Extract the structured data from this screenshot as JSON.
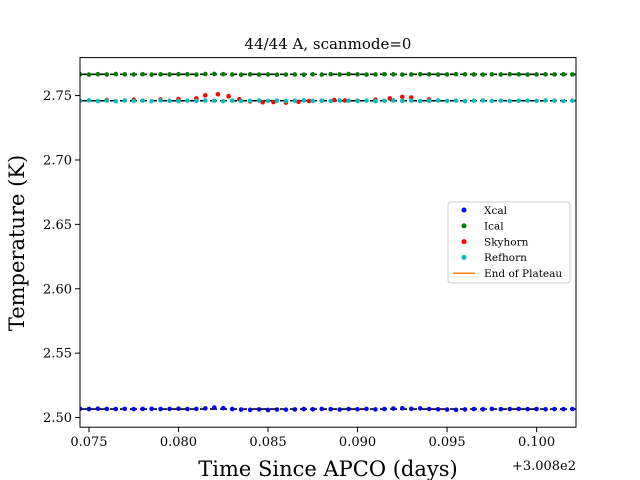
{
  "chart_data": {
    "type": "scatter",
    "title": "44/44 A, scanmode=0",
    "xlabel": "Time Since APCO (days)",
    "ylabel": "Temperature (K)",
    "x_offset_label": "+3.008e2",
    "xlim": [
      0.0745,
      0.1022
    ],
    "ylim": [
      2.4925,
      2.7795
    ],
    "x_ticks": [
      0.075,
      0.08,
      0.085,
      0.09,
      0.095,
      0.1
    ],
    "x_tick_labels": [
      "0.075",
      "0.080",
      "0.085",
      "0.090",
      "0.095",
      "0.100"
    ],
    "y_ticks": [
      2.5,
      2.55,
      2.6,
      2.65,
      2.7,
      2.75
    ],
    "y_tick_labels": [
      "2.50",
      "2.55",
      "2.60",
      "2.65",
      "2.70",
      "2.75"
    ],
    "grid": false,
    "legend_position": "center-right",
    "series": [
      {
        "name": "Xcal",
        "color": "#0000ff",
        "marker": "circle",
        "x": [
          0.0745,
          0.075,
          0.0755,
          0.076,
          0.0765,
          0.077,
          0.0775,
          0.078,
          0.0785,
          0.079,
          0.0795,
          0.08,
          0.0805,
          0.081,
          0.0815,
          0.082,
          0.0825,
          0.083,
          0.0835,
          0.084,
          0.0845,
          0.085,
          0.0855,
          0.086,
          0.0865,
          0.087,
          0.0875,
          0.088,
          0.0885,
          0.089,
          0.0895,
          0.09,
          0.0905,
          0.091,
          0.0915,
          0.092,
          0.0925,
          0.093,
          0.0935,
          0.094,
          0.0945,
          0.095,
          0.0955,
          0.096,
          0.0965,
          0.097,
          0.0975,
          0.098,
          0.0985,
          0.099,
          0.0995,
          0.1,
          0.1005,
          0.101,
          0.1015,
          0.102
        ],
        "y": [
          2.5068,
          2.5066,
          2.5069,
          2.5067,
          2.5066,
          2.5068,
          2.5065,
          2.5067,
          2.5068,
          2.5066,
          2.5067,
          2.5069,
          2.5066,
          2.5067,
          2.5071,
          2.5078,
          2.5073,
          2.5066,
          2.5062,
          2.506,
          2.5063,
          2.5059,
          2.5062,
          2.5061,
          2.5063,
          2.5066,
          2.5064,
          2.5067,
          2.5065,
          2.5062,
          2.5066,
          2.5064,
          2.5067,
          2.5063,
          2.5066,
          2.507,
          2.5072,
          2.5068,
          2.5071,
          2.5066,
          2.5064,
          2.5062,
          2.506,
          2.5063,
          2.5066,
          2.5064,
          2.5067,
          2.5065,
          2.5066,
          2.5067,
          2.5065,
          2.5066,
          2.5064,
          2.5066,
          2.5065,
          2.5066
        ]
      },
      {
        "name": "Ical",
        "color": "#008000",
        "marker": "circle",
        "x": [
          0.0745,
          0.075,
          0.0755,
          0.076,
          0.0765,
          0.077,
          0.0775,
          0.078,
          0.0785,
          0.079,
          0.0795,
          0.08,
          0.0805,
          0.081,
          0.0815,
          0.082,
          0.0825,
          0.083,
          0.0835,
          0.084,
          0.0845,
          0.085,
          0.0855,
          0.086,
          0.0865,
          0.087,
          0.0875,
          0.088,
          0.0885,
          0.089,
          0.0895,
          0.09,
          0.0905,
          0.091,
          0.0915,
          0.092,
          0.0925,
          0.093,
          0.0935,
          0.094,
          0.0945,
          0.095,
          0.0955,
          0.096,
          0.0965,
          0.097,
          0.0975,
          0.098,
          0.0985,
          0.099,
          0.0995,
          0.1,
          0.1005,
          0.101,
          0.1015,
          0.102
        ],
        "y": [
          2.7665,
          2.7663,
          2.7666,
          2.7664,
          2.7667,
          2.7665,
          2.7664,
          2.7666,
          2.7663,
          2.7665,
          2.7664,
          2.7666,
          2.7665,
          2.7663,
          2.7667,
          2.7668,
          2.7666,
          2.7664,
          2.7662,
          2.7665,
          2.7663,
          2.7664,
          2.7662,
          2.7663,
          2.7664,
          2.7662,
          2.7665,
          2.7663,
          2.7666,
          2.7664,
          2.7667,
          2.7665,
          2.7663,
          2.7664,
          2.7666,
          2.7665,
          2.7663,
          2.7664,
          2.7666,
          2.7665,
          2.7663,
          2.7664,
          2.7666,
          2.7665,
          2.7664,
          2.7663,
          2.7665,
          2.7664,
          2.7666,
          2.7665,
          2.7663,
          2.7664,
          2.7665,
          2.7664,
          2.7665,
          2.7664
        ]
      },
      {
        "name": "Skyhorn",
        "color": "#ff0000",
        "marker": "circle",
        "x": [
          0.076,
          0.0775,
          0.079,
          0.08,
          0.081,
          0.0815,
          0.0822,
          0.0828,
          0.0834,
          0.084,
          0.0847,
          0.0853,
          0.086,
          0.0867,
          0.0873,
          0.088,
          0.0887,
          0.0893,
          0.09,
          0.091,
          0.0918,
          0.0925,
          0.093,
          0.094
        ],
        "y": [
          2.7465,
          2.7468,
          2.747,
          2.7473,
          2.7478,
          2.7502,
          2.751,
          2.7495,
          2.7472,
          2.7455,
          2.7448,
          2.745,
          2.7445,
          2.7452,
          2.7458,
          2.746,
          2.7465,
          2.7462,
          2.746,
          2.7468,
          2.7478,
          2.749,
          2.7485,
          2.747
        ]
      },
      {
        "name": "Refhorn",
        "color": "#00bfbf",
        "marker": "circle",
        "x": [
          0.0745,
          0.075,
          0.0755,
          0.076,
          0.0765,
          0.077,
          0.0775,
          0.078,
          0.0785,
          0.079,
          0.0795,
          0.08,
          0.0805,
          0.081,
          0.0815,
          0.082,
          0.0825,
          0.083,
          0.0835,
          0.084,
          0.0845,
          0.085,
          0.0855,
          0.086,
          0.0865,
          0.087,
          0.0875,
          0.088,
          0.0885,
          0.089,
          0.0895,
          0.09,
          0.0905,
          0.091,
          0.0915,
          0.092,
          0.0925,
          0.093,
          0.0935,
          0.094,
          0.0945,
          0.095,
          0.0955,
          0.096,
          0.0965,
          0.097,
          0.0975,
          0.098,
          0.0985,
          0.099,
          0.0995,
          0.1,
          0.1005,
          0.101,
          0.1015,
          0.102
        ],
        "y": [
          2.746,
          2.7463,
          2.7458,
          2.7461,
          2.7456,
          2.7462,
          2.7459,
          2.7461,
          2.7457,
          2.7462,
          2.746,
          2.7458,
          2.7461,
          2.7459,
          2.7462,
          2.746,
          2.7457,
          2.7461,
          2.7458,
          2.746,
          2.7462,
          2.7459,
          2.7461,
          2.7458,
          2.746,
          2.7463,
          2.7459,
          2.7461,
          2.7458,
          2.7462,
          2.746,
          2.7458,
          2.7461,
          2.7457,
          2.746,
          2.7462,
          2.7459,
          2.7461,
          2.7458,
          2.746,
          2.7462,
          2.7459,
          2.7461,
          2.7457,
          2.746,
          2.7462,
          2.7459,
          2.7461,
          2.7458,
          2.746,
          2.7461,
          2.7459,
          2.7462,
          2.746,
          2.7458,
          2.746
        ]
      },
      {
        "name": "End of Plateau",
        "color": "#ff7f0e",
        "marker": "line",
        "x": [],
        "y": []
      }
    ],
    "fit_lines": [
      {
        "color": "#000000",
        "y": 2.5066
      },
      {
        "color": "#000000",
        "y": 2.7665
      },
      {
        "color": "#000000",
        "y": 2.746
      }
    ]
  }
}
